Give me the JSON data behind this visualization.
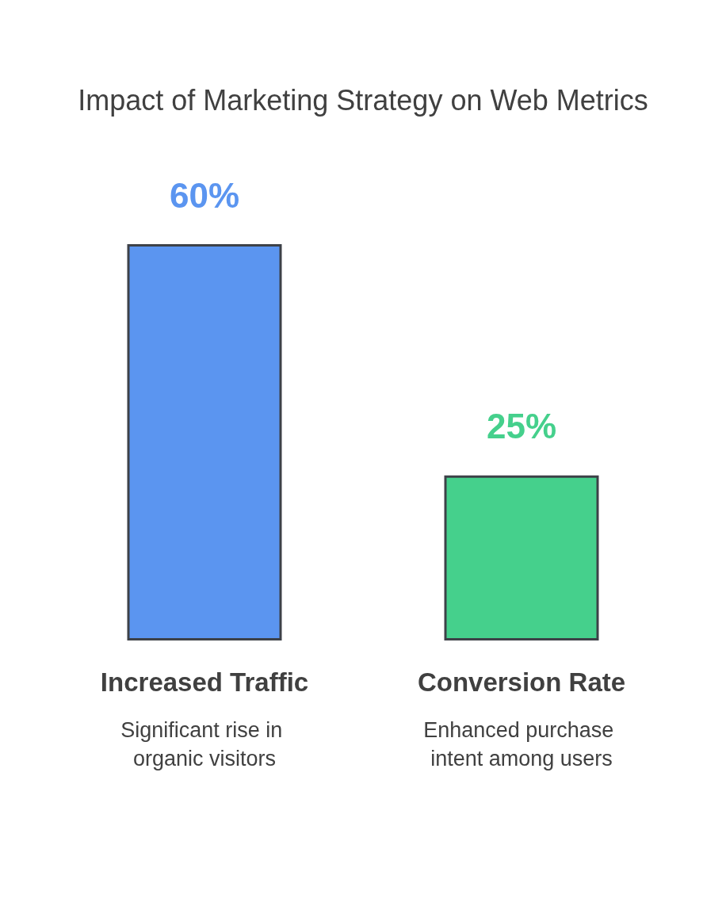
{
  "chart_data": {
    "type": "bar",
    "title": "Impact of Marketing Strategy on Web Metrics",
    "categories": [
      "Increased Traffic",
      "Conversion Rate"
    ],
    "values": [
      60,
      25
    ],
    "colors": [
      "#5b95f0",
      "#45d08c"
    ],
    "value_labels": [
      "60%",
      "25%"
    ],
    "annotations": [
      "Significant rise in organic visitors",
      "Enhanced purchase intent among users"
    ]
  }
}
